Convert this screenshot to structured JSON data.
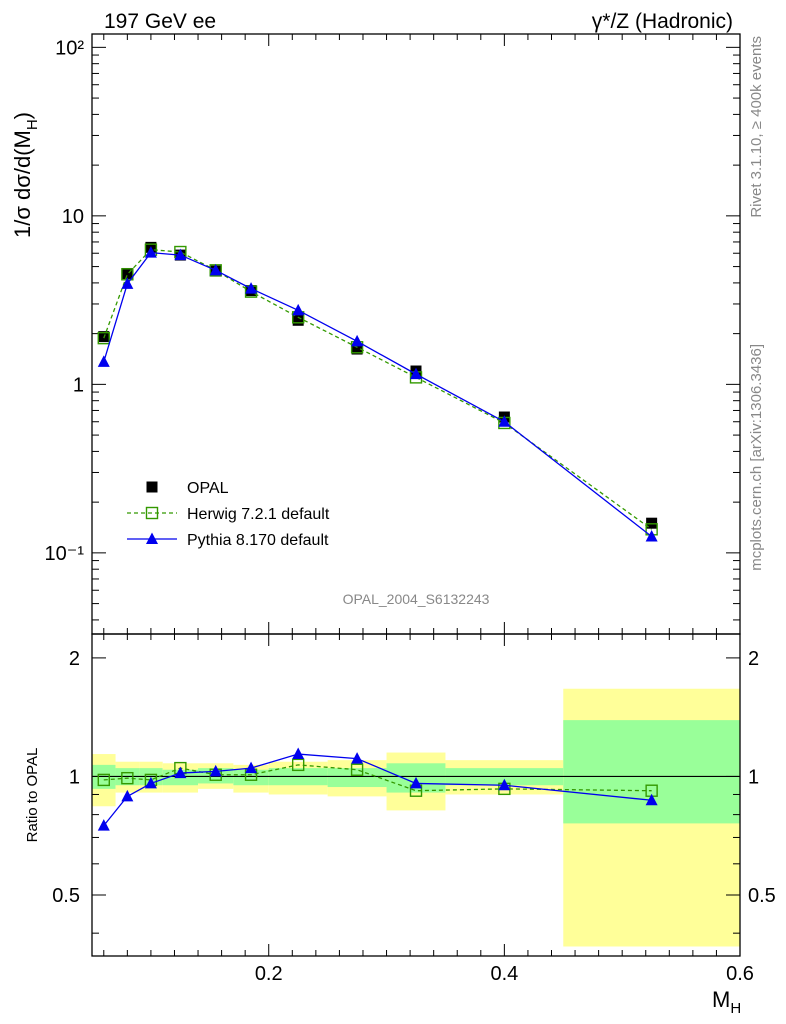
{
  "header": {
    "left_title": "197 GeV ee",
    "right_title": "γ*/Z (Hadronic)"
  },
  "side_labels": {
    "rivet": "Rivet 3.1.10, ≥ 400k events",
    "mcplots": "mcplots.cern.ch [arXiv:1306.3436]"
  },
  "watermark": "OPAL_2004_S6132243",
  "colors": {
    "opal": "#000000",
    "herwig": "#339900",
    "pythia": "#0000ee",
    "band_inner": "#99ff99",
    "band_outer": "#ffff99"
  },
  "chart_data": [
    {
      "type": "line",
      "panel": "main",
      "ylabel": "1/σ dσ/d(M_H)",
      "xlabel": "",
      "yscale": "log",
      "xlim": [
        0.05,
        0.6
      ],
      "ylim": [
        0.033,
        120
      ],
      "y_ticks": [
        0.1,
        1,
        10,
        100
      ],
      "y_tick_labels": [
        "10⁻¹",
        "1",
        "10",
        "10²"
      ],
      "legend_position": "lower-left",
      "x": [
        0.06,
        0.08,
        0.1,
        0.125,
        0.155,
        0.185,
        0.225,
        0.275,
        0.325,
        0.4,
        0.525
      ],
      "series": [
        {
          "name": "OPAL",
          "style": "markers",
          "marker": "filled-square",
          "values": [
            1.92,
            4.55,
            6.5,
            5.85,
            4.7,
            3.6,
            2.4,
            1.62,
            1.2,
            0.64,
            0.15
          ]
        },
        {
          "name": "Herwig 7.2.1 default",
          "style": "dashed",
          "marker": "open-square",
          "values": [
            1.88,
            4.5,
            6.3,
            6.1,
            4.75,
            3.55,
            2.5,
            1.66,
            1.1,
            0.59,
            0.138
          ]
        },
        {
          "name": "Pythia 8.170 default",
          "style": "solid",
          "marker": "triangle",
          "values": [
            1.36,
            3.95,
            6.05,
            5.85,
            4.75,
            3.7,
            2.75,
            1.8,
            1.15,
            0.6,
            0.125
          ]
        }
      ]
    },
    {
      "type": "line",
      "panel": "ratio",
      "ylabel": "Ratio to OPAL",
      "xlabel": "M_H",
      "xlim": [
        0.05,
        0.6
      ],
      "ylim": [
        0.35,
        2.3
      ],
      "y_ticks": [
        0.5,
        1,
        2
      ],
      "y_tick_labels": [
        "0.5",
        "1",
        "2"
      ],
      "x_ticks": [
        0.2,
        0.4,
        0.6
      ],
      "x_tick_labels": [
        "0.2",
        "0.4",
        "0.6"
      ],
      "bins": [
        {
          "lo": 0.05,
          "hi": 0.07,
          "inner": [
            0.93,
            1.07
          ],
          "outer": [
            0.84,
            1.14
          ]
        },
        {
          "lo": 0.07,
          "hi": 0.09,
          "inner": [
            0.95,
            1.05
          ],
          "outer": [
            0.91,
            1.09
          ]
        },
        {
          "lo": 0.09,
          "hi": 0.11,
          "inner": [
            0.95,
            1.05
          ],
          "outer": [
            0.91,
            1.09
          ]
        },
        {
          "lo": 0.11,
          "hi": 0.14,
          "inner": [
            0.95,
            1.04
          ],
          "outer": [
            0.91,
            1.08
          ]
        },
        {
          "lo": 0.14,
          "hi": 0.17,
          "inner": [
            0.96,
            1.05
          ],
          "outer": [
            0.93,
            1.08
          ]
        },
        {
          "lo": 0.17,
          "hi": 0.2,
          "inner": [
            0.95,
            1.04
          ],
          "outer": [
            0.91,
            1.07
          ]
        },
        {
          "lo": 0.2,
          "hi": 0.25,
          "inner": [
            0.95,
            1.05
          ],
          "outer": [
            0.9,
            1.09
          ]
        },
        {
          "lo": 0.25,
          "hi": 0.3,
          "inner": [
            0.94,
            1.05
          ],
          "outer": [
            0.89,
            1.1
          ]
        },
        {
          "lo": 0.3,
          "hi": 0.35,
          "inner": [
            0.91,
            1.08
          ],
          "outer": [
            0.82,
            1.15
          ]
        },
        {
          "lo": 0.35,
          "hi": 0.45,
          "inner": [
            0.95,
            1.05
          ],
          "outer": [
            0.9,
            1.1
          ]
        },
        {
          "lo": 0.45,
          "hi": 0.6,
          "inner": [
            0.76,
            1.39
          ],
          "outer": [
            0.37,
            1.67
          ]
        }
      ],
      "x": [
        0.06,
        0.08,
        0.1,
        0.125,
        0.155,
        0.185,
        0.225,
        0.275,
        0.325,
        0.4,
        0.525
      ],
      "series": [
        {
          "name": "Herwig 7.2.1 default",
          "style": "dashed",
          "marker": "open-square",
          "values": [
            0.98,
            0.99,
            0.98,
            1.05,
            1.01,
            1.01,
            1.07,
            1.04,
            0.92,
            0.93,
            0.92
          ]
        },
        {
          "name": "Pythia 8.170 default",
          "style": "solid",
          "marker": "triangle",
          "values": [
            0.75,
            0.89,
            0.96,
            1.02,
            1.03,
            1.05,
            1.14,
            1.11,
            0.96,
            0.95,
            0.87
          ]
        }
      ]
    }
  ]
}
